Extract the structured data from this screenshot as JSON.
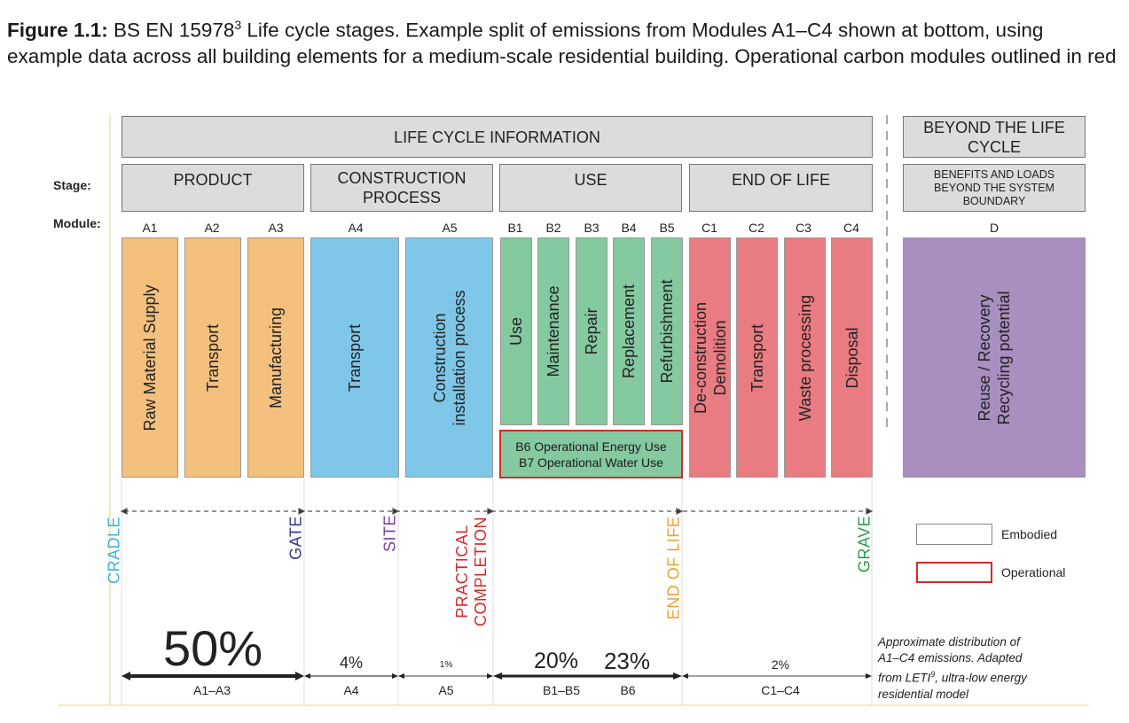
{
  "caption": {
    "label": "Figure 1.1:",
    "text_before": " BS EN 15978",
    "sup": "3",
    "text_after": " Life cycle stages. Example split of emissions from Modules A1–C4 shown at bottom, using example data across all building elements for a medium-scale residential building. Operational carbon modules outlined in red"
  },
  "headers": {
    "life_cycle_info": "LIFE CYCLE INFORMATION",
    "beyond": "BEYOND THE LIFE CYCLE",
    "stage_label": "Stage:",
    "module_label": "Module:",
    "stages": {
      "product": "PRODUCT",
      "construction": "CONSTRUCTION PROCESS",
      "use": "USE",
      "end_of_life": "END OF LIFE",
      "benefits": "BENEFITS AND LOADS BEYOND THE SYSTEM BOUNDARY"
    }
  },
  "modules": {
    "A1": {
      "code": "A1",
      "name": "Raw Material Supply"
    },
    "A2": {
      "code": "A2",
      "name": "Transport"
    },
    "A3": {
      "code": "A3",
      "name": "Manufacturing"
    },
    "A4": {
      "code": "A4",
      "name": "Transport"
    },
    "A5": {
      "code": "A5",
      "name_1": "Construction",
      "name_2": "installation process"
    },
    "B1": {
      "code": "B1",
      "name": "Use"
    },
    "B2": {
      "code": "B2",
      "name": "Maintenance"
    },
    "B3": {
      "code": "B3",
      "name": "Repair"
    },
    "B4": {
      "code": "B4",
      "name": "Replacement"
    },
    "B5": {
      "code": "B5",
      "name": "Refurbishment"
    },
    "C1": {
      "code": "C1",
      "name_1": "De-construction",
      "name_2": "Demolition"
    },
    "C2": {
      "code": "C2",
      "name": "Transport"
    },
    "C3": {
      "code": "C3",
      "name": "Waste processing"
    },
    "C4": {
      "code": "C4",
      "name": "Disposal"
    },
    "D": {
      "code": "D",
      "name_1": "Reuse / Recovery",
      "name_2": "Recycling potential"
    }
  },
  "operational": {
    "b6": "B6 Operational Energy Use",
    "b7": "B7 Operational Water Use"
  },
  "milestones": {
    "cradle": "CRADLE",
    "gate": "GATE",
    "site": "SITE",
    "practical_1": "PRACTICAL",
    "practical_2": "COMPLETION",
    "end_of_life": "END OF LIFE",
    "grave": "GRAVE"
  },
  "distribution": {
    "a1_a3": {
      "pct": "50%",
      "range": "A1–A3",
      "value": 50
    },
    "a4": {
      "pct": "4%",
      "range": "A4",
      "value": 4
    },
    "a5": {
      "pct": "1%",
      "range": "A5",
      "value": 1
    },
    "b1_b5": {
      "pct": "20%",
      "range": "B1–B5",
      "value": 20
    },
    "b6": {
      "pct": "23%",
      "range": "B6",
      "value": 23
    },
    "c1_c4": {
      "pct": "2%",
      "range": "C1–C4",
      "value": 2
    }
  },
  "legend": {
    "embodied": "Embodied",
    "operational": "Operational"
  },
  "note": {
    "line1": "Approximate distribution of",
    "line2": "A1–C4 emissions. Adapted",
    "line3a": "from LETI",
    "line3sup": "9",
    "line3b": ", ultra-low energy",
    "line4": "residential model"
  },
  "colors": {
    "product": "#f3c07d",
    "construction": "#7fc7e8",
    "use": "#85c9a0",
    "end_of_life": "#e87c82",
    "beyond": "#a98fbf",
    "operational_outline": "#d62a2a",
    "cradle": "#3fb1d8",
    "gate": "#3a3a8c",
    "site": "#7a3f98",
    "practical": "#d62a2a",
    "end_of_life_label": "#f0a030",
    "grave": "#2e9a4a"
  }
}
